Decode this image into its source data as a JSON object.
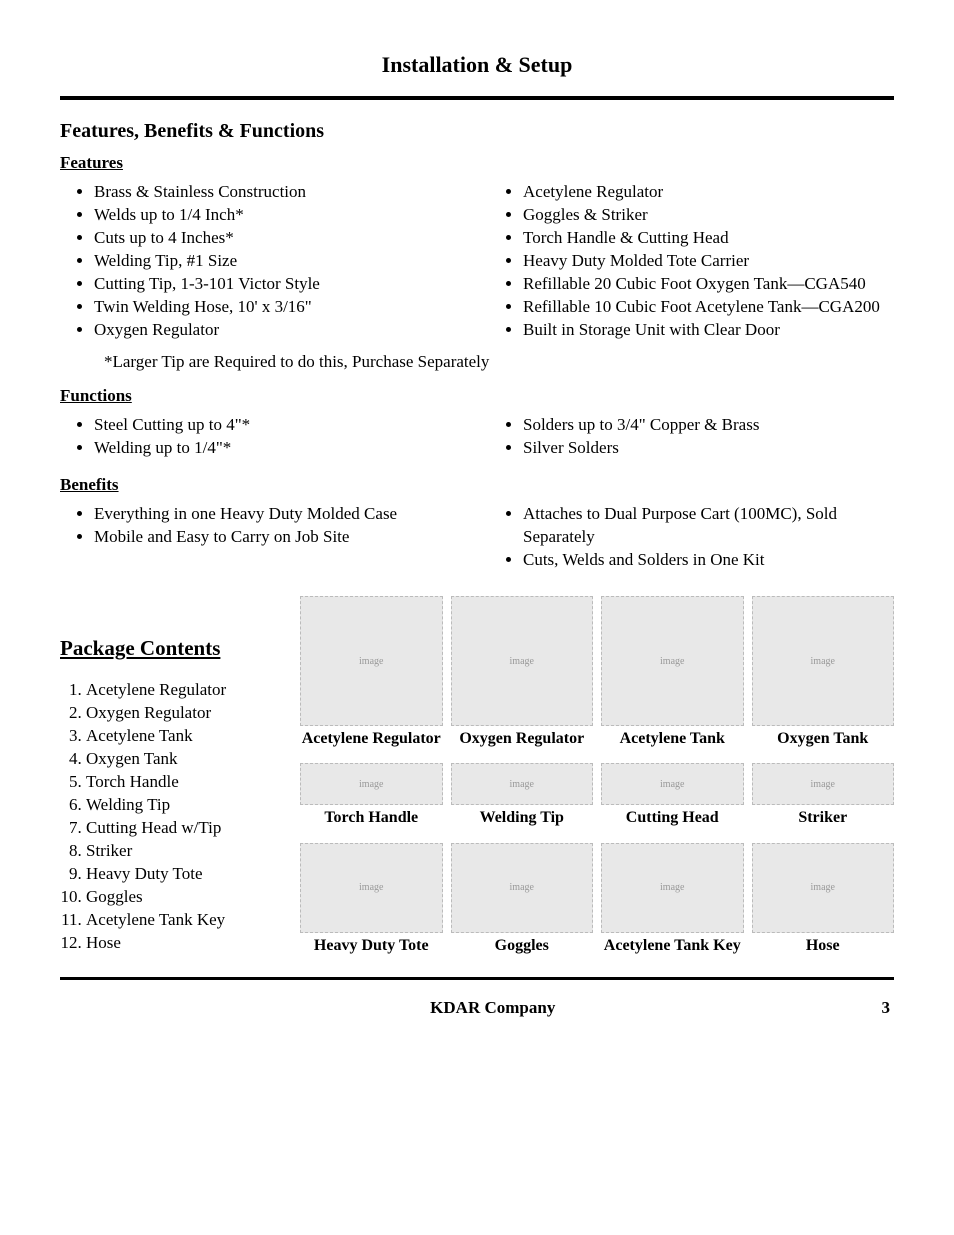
{
  "page": {
    "title": "Installation & Setup",
    "footer_company": "KDAR Company",
    "footer_page": "3"
  },
  "section1": {
    "heading": "Features, Benefits & Functions",
    "features_label": "Features",
    "features_left": [
      "Brass & Stainless Construction",
      "Welds up to 1/4 Inch*",
      "Cuts up to 4 Inches*",
      "Welding Tip, #1 Size",
      "Cutting Tip, 1-3-101 Victor Style",
      "Twin Welding Hose, 10' x 3/16\"",
      "Oxygen Regulator"
    ],
    "features_right": [
      "Acetylene Regulator",
      "Goggles & Striker",
      "Torch Handle & Cutting Head",
      "Heavy Duty Molded Tote Carrier",
      "Refillable 20 Cubic Foot Oxygen Tank—CGA540",
      "Refillable 10 Cubic Foot Acetylene Tank—CGA200",
      "Built in Storage Unit with Clear Door"
    ],
    "footnote": "*Larger Tip are Required to do this, Purchase Separately",
    "functions_label": "Functions",
    "functions_left": [
      "Steel Cutting up to 4\"*",
      "Welding up to 1/4\"*"
    ],
    "functions_right": [
      "Solders up to 3/4\" Copper & Brass",
      "Silver Solders"
    ],
    "benefits_label": "Benefits",
    "benefits_left": [
      "Everything in one Heavy Duty Molded Case",
      "Mobile and Easy to Carry on Job Site"
    ],
    "benefits_right": [
      "Attaches to Dual Purpose Cart (100MC), Sold Separately",
      "Cuts, Welds and Solders in One Kit"
    ]
  },
  "package": {
    "heading": "Package Contents",
    "list": [
      "Acetylene Regulator",
      "Oxygen Regulator",
      "Acetylene Tank",
      "Oxygen Tank",
      "Torch Handle",
      "Welding Tip",
      "Cutting Head w/Tip",
      "Striker",
      "Heavy Duty Tote",
      "Goggles",
      "Acetylene Tank Key",
      "Hose"
    ],
    "items": [
      {
        "caption": "Acetylene Regulator",
        "size": "tall"
      },
      {
        "caption": "Oxygen Regulator",
        "size": "tall"
      },
      {
        "caption": "Acetylene Tank",
        "size": "tall"
      },
      {
        "caption": "Oxygen Tank",
        "size": "tall"
      },
      {
        "caption": "Torch Handle",
        "size": "short"
      },
      {
        "caption": "Welding Tip",
        "size": "short"
      },
      {
        "caption": "Cutting Head",
        "size": "short"
      },
      {
        "caption": "Striker",
        "size": "short"
      },
      {
        "caption": "Heavy Duty Tote",
        "size": ""
      },
      {
        "caption": "Goggles",
        "size": ""
      },
      {
        "caption": "Acetylene Tank Key",
        "size": ""
      },
      {
        "caption": "Hose",
        "size": ""
      }
    ]
  }
}
